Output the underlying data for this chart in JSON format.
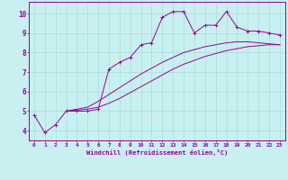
{
  "xlabel": "Windchill (Refroidissement éolien,°C)",
  "bg_color": "#c8f0f0",
  "line_color": "#990099",
  "grid_color": "#aadddd",
  "xlim": [
    -0.5,
    23.5
  ],
  "ylim": [
    3.5,
    10.6
  ],
  "xticks": [
    0,
    1,
    2,
    3,
    4,
    5,
    6,
    7,
    8,
    9,
    10,
    11,
    12,
    13,
    14,
    15,
    16,
    17,
    18,
    19,
    20,
    21,
    22,
    23
  ],
  "yticks": [
    4,
    5,
    6,
    7,
    8,
    9,
    10
  ],
  "curve1_x": [
    0,
    1,
    2,
    3,
    4,
    5,
    6,
    7,
    8,
    9,
    10,
    11,
    12,
    13,
    14,
    15,
    16,
    17,
    18,
    19,
    20,
    21,
    22,
    23
  ],
  "curve1_y": [
    4.8,
    3.9,
    4.3,
    5.0,
    5.0,
    5.0,
    5.1,
    7.15,
    7.5,
    7.75,
    8.4,
    8.5,
    9.8,
    10.1,
    10.1,
    9.0,
    9.4,
    9.4,
    10.1,
    9.3,
    9.1,
    9.1,
    9.0,
    8.9
  ],
  "curve2_x": [
    3,
    4,
    5,
    6,
    7,
    8,
    9,
    10,
    11,
    12,
    13,
    14,
    15,
    16,
    17,
    18,
    19,
    20,
    21,
    22,
    23
  ],
  "curve2_y": [
    5.0,
    5.05,
    5.1,
    5.2,
    5.4,
    5.65,
    5.95,
    6.25,
    6.55,
    6.85,
    7.15,
    7.4,
    7.6,
    7.8,
    7.95,
    8.1,
    8.2,
    8.3,
    8.35,
    8.4,
    8.4
  ],
  "curve3_x": [
    3,
    4,
    5,
    6,
    7,
    8,
    9,
    10,
    11,
    12,
    13,
    14,
    15,
    16,
    17,
    18,
    19,
    20,
    21,
    22,
    23
  ],
  "curve3_y": [
    5.0,
    5.1,
    5.2,
    5.5,
    5.85,
    6.2,
    6.55,
    6.9,
    7.2,
    7.5,
    7.75,
    8.0,
    8.15,
    8.3,
    8.4,
    8.5,
    8.55,
    8.55,
    8.5,
    8.45,
    8.4
  ]
}
